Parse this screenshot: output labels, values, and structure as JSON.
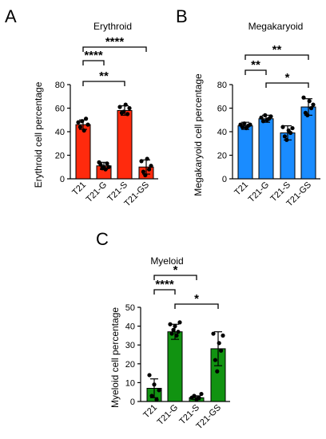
{
  "chart_data": [
    {
      "type": "bar",
      "panel": "A",
      "title": "Erythroid",
      "ylabel": "Erythroid cell percentage",
      "xlabel": "",
      "ylim": [
        0,
        80
      ],
      "yticks": [
        0,
        20,
        40,
        60,
        80
      ],
      "categories": [
        "T21",
        "T21-G",
        "T21-S",
        "T21-GS"
      ],
      "values": [
        46,
        11,
        58,
        10
      ],
      "errors": [
        4,
        3,
        4,
        6
      ],
      "points": [
        [
          48,
          44,
          49,
          41,
          51,
          46
        ],
        [
          14,
          12,
          9,
          10,
          8,
          13,
          10
        ],
        [
          61,
          56,
          57,
          63,
          55,
          60
        ],
        [
          15,
          6,
          3,
          17,
          8,
          11
        ]
      ],
      "color": "#ff2a0d",
      "brackets": [
        {
          "from": 0,
          "to": 3,
          "label": "****"
        },
        {
          "from": 0,
          "to": 1,
          "label": "****"
        },
        {
          "from": 0,
          "to": 2,
          "label": "**"
        }
      ]
    },
    {
      "type": "bar",
      "panel": "B",
      "title": "Megakaryoid",
      "ylabel": "Megakaryoid cell percentage",
      "xlabel": "",
      "ylim": [
        0,
        80
      ],
      "yticks": [
        0,
        20,
        40,
        60,
        80
      ],
      "categories": [
        "T21",
        "T21-G",
        "T21-S",
        "T21-GS"
      ],
      "values": [
        45,
        51,
        39,
        61
      ],
      "errors": [
        3,
        3,
        6,
        7
      ],
      "points": [
        [
          46,
          44,
          47,
          43,
          45,
          46
        ],
        [
          52,
          49,
          54,
          50,
          51,
          53
        ],
        [
          44,
          36,
          33,
          41,
          39,
          43
        ],
        [
          69,
          56,
          54,
          66,
          60,
          63
        ]
      ],
      "color": "#1a8cff",
      "brackets": [
        {
          "from": 0,
          "to": 3,
          "label": "**"
        },
        {
          "from": 0,
          "to": 1,
          "label": "**"
        },
        {
          "from": 1,
          "to": 3,
          "label": "*"
        }
      ]
    },
    {
      "type": "bar",
      "panel": "C",
      "title": "Myeloid",
      "ylabel": "Myeloid cell percentage",
      "xlabel": "",
      "ylim": [
        0,
        50
      ],
      "yticks": [
        0,
        10,
        20,
        30,
        40,
        50
      ],
      "categories": [
        "T21",
        "T21-G",
        "T21-S",
        "T21-GS"
      ],
      "values": [
        7,
        37,
        2,
        28
      ],
      "errors": [
        5,
        4,
        1,
        9
      ],
      "points": [
        [
          14,
          3,
          9,
          1,
          6
        ],
        [
          41,
          36,
          38,
          40,
          35,
          37,
          42
        ],
        [
          2,
          3,
          1,
          2,
          4
        ],
        [
          36,
          22,
          16,
          31,
          27,
          35
        ]
      ],
      "color": "#119311",
      "brackets": [
        {
          "from": 0,
          "to": 2,
          "label": "*"
        },
        {
          "from": 0,
          "to": 1,
          "label": "****"
        },
        {
          "from": 1,
          "to": 3,
          "label": "*"
        }
      ]
    }
  ]
}
